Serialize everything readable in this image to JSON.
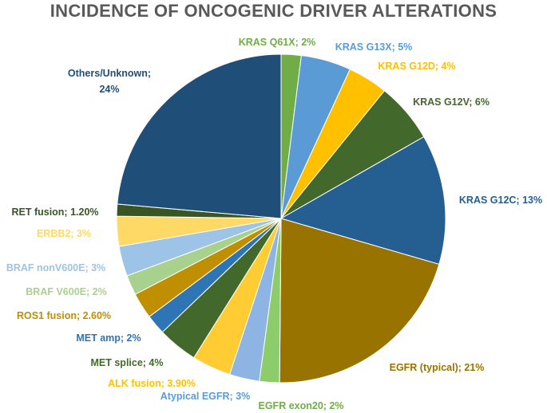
{
  "chart_data": {
    "type": "pie",
    "title": "INCIDENCE  OF ONCOGENIC DRIVER ALTERATIONS",
    "slices": [
      {
        "label": "KRAS Q61X; 2%",
        "value": 2,
        "color": "#70ad47",
        "label_color": "#70ad47"
      },
      {
        "label": "KRAS G13X; 5%",
        "value": 5,
        "color": "#5b9bd5",
        "label_color": "#5b9bd5"
      },
      {
        "label": "KRAS G12D; 4%",
        "value": 4,
        "color": "#ffc000",
        "label_color": "#ffc000"
      },
      {
        "label": "KRAS G12V; 6%",
        "value": 6,
        "color": "#43682b",
        "label_color": "#43682b"
      },
      {
        "label": "KRAS G12C; 13%",
        "value": 13,
        "color": "#255e91",
        "label_color": "#255e91"
      },
      {
        "label": "EGFR (typical); 21%",
        "value": 21,
        "color": "#997300",
        "label_color": "#997300"
      },
      {
        "label": "EGFR exon20; 2%",
        "value": 2,
        "color": "#8ccc6b",
        "label_color": "#70ad47"
      },
      {
        "label": "Atypical EGFR; 3%",
        "value": 3,
        "color": "#8db4e2",
        "label_color": "#5b9bd5"
      },
      {
        "label": "ALK fusion; 3.90%",
        "value": 3.9,
        "color": "#ffcc33",
        "label_color": "#ffc000"
      },
      {
        "label": "MET splice; 4%",
        "value": 4,
        "color": "#43682b",
        "label_color": "#43682b"
      },
      {
        "label": "MET amp; 2%",
        "value": 2,
        "color": "#2e75b6",
        "label_color": "#2e75b6"
      },
      {
        "label": "ROS1 fusion; 2.60%",
        "value": 2.6,
        "color": "#bf8f00",
        "label_color": "#bf8f00"
      },
      {
        "label": "BRAF V600E; 2%",
        "value": 2,
        "color": "#a9d18e",
        "label_color": "#a9d18e"
      },
      {
        "label": "BRAF nonV600E; 3%",
        "value": 3,
        "color": "#9dc3e6",
        "label_color": "#9dc3e6"
      },
      {
        "label": "ERBB2; 3%",
        "value": 3,
        "color": "#ffd966",
        "label_color": "#ffd966"
      },
      {
        "label": "RET fusion; 1.20%",
        "value": 1.2,
        "color": "#375623",
        "label_color": "#375623"
      },
      {
        "label": "Others/Unknown;|24%",
        "value": 24,
        "color": "#1f4e79",
        "label_color": "#1f4e79"
      }
    ]
  }
}
